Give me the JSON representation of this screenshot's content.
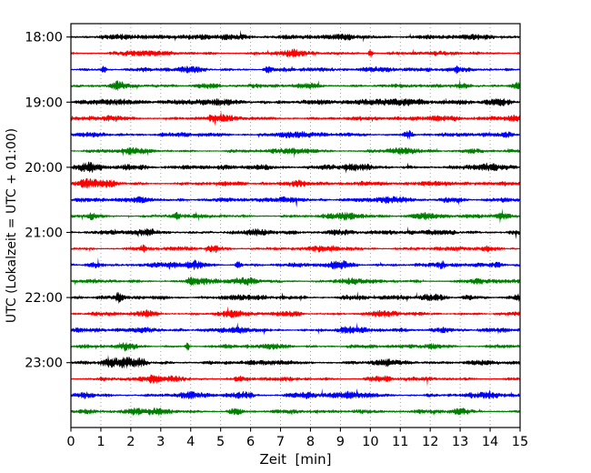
{
  "chart_data": {
    "type": "line",
    "subtype": "seismogram-helicorder-dayplot",
    "title": "",
    "xlabel": "Zeit  [min]",
    "ylabel": "UTC (Lokalzeit = UTC + 01:00)",
    "xlim": [
      0,
      15
    ],
    "minutes_per_line": 15,
    "x_ticks": [
      0,
      1,
      2,
      3,
      4,
      5,
      6,
      7,
      8,
      9,
      10,
      11,
      12,
      13,
      14,
      15
    ],
    "y_tick_labels": [
      "18:00",
      "19:00",
      "20:00",
      "21:00",
      "22:00",
      "23:00"
    ],
    "grid": {
      "vertical": true,
      "horizontal": false,
      "style": "dotted",
      "color": "#999999"
    },
    "trace_color_cycle": [
      "#000000",
      "#ff0000",
      "#0000ff",
      "#008000"
    ],
    "traces": [
      {
        "start": "18:00",
        "color": "#000000",
        "seed": 11,
        "base_amp": 2.5,
        "events": [
          [
            1.7,
            2.5,
            0.4
          ],
          [
            5.2,
            2.0,
            0.5
          ],
          [
            9.3,
            1.8,
            0.4
          ],
          [
            13.8,
            1.6,
            0.3
          ]
        ]
      },
      {
        "start": "18:15",
        "color": "#ff0000",
        "seed": 22,
        "base_amp": 2.2,
        "events": [
          [
            2.3,
            1.8,
            0.4
          ],
          [
            7.3,
            2.2,
            0.3
          ],
          [
            10.0,
            4.6,
            0.05
          ]
        ]
      },
      {
        "start": "18:30",
        "color": "#0000ff",
        "seed": 33,
        "base_amp": 2.3,
        "events": [
          [
            1.1,
            4.4,
            0.05
          ],
          [
            4.1,
            2.2,
            0.25
          ],
          [
            6.6,
            3.4,
            0.07
          ],
          [
            10.3,
            2.4,
            0.4
          ],
          [
            12.9,
            4.6,
            0.05
          ]
        ]
      },
      {
        "start": "18:45",
        "color": "#008000",
        "seed": 44,
        "base_amp": 2.1,
        "events": [
          [
            1.6,
            3.2,
            0.15
          ],
          [
            4.5,
            2.2,
            0.3
          ],
          [
            8.0,
            2.0,
            0.3
          ],
          [
            13.1,
            2.6,
            0.2
          ],
          [
            14.9,
            2.8,
            0.15
          ]
        ]
      },
      {
        "start": "19:00",
        "color": "#000000",
        "seed": 55,
        "base_amp": 2.5,
        "events": [
          [
            1.4,
            2.6,
            0.5
          ],
          [
            5.0,
            2.0,
            0.6
          ],
          [
            10.7,
            3.2,
            0.7
          ],
          [
            14.3,
            2.4,
            0.3
          ]
        ]
      },
      {
        "start": "19:15",
        "color": "#ff0000",
        "seed": 66,
        "base_amp": 2.2,
        "events": [
          [
            1.4,
            2.2,
            0.3
          ],
          [
            5.0,
            2.0,
            0.4
          ],
          [
            12.2,
            2.4,
            0.5
          ],
          [
            14.8,
            2.0,
            0.2
          ]
        ]
      },
      {
        "start": "19:30",
        "color": "#0000ff",
        "seed": 77,
        "base_amp": 2.3,
        "events": [
          [
            0.8,
            2.0,
            0.3
          ],
          [
            7.3,
            2.2,
            0.4
          ],
          [
            11.3,
            3.8,
            0.1
          ],
          [
            14.6,
            2.0,
            0.2
          ]
        ]
      },
      {
        "start": "19:45",
        "color": "#008000",
        "seed": 88,
        "base_amp": 2.1,
        "events": [
          [
            2.0,
            2.0,
            0.3
          ],
          [
            7.6,
            2.2,
            0.4
          ],
          [
            11.0,
            2.4,
            0.25
          ],
          [
            13.5,
            1.8,
            0.3
          ]
        ]
      },
      {
        "start": "20:00",
        "color": "#000000",
        "seed": 99,
        "base_amp": 2.5,
        "events": [
          [
            0.6,
            3.0,
            0.3
          ],
          [
            2.0,
            2.2,
            0.4
          ],
          [
            6.3,
            2.6,
            0.25
          ],
          [
            9.4,
            2.0,
            0.4
          ],
          [
            13.9,
            2.2,
            0.3
          ]
        ]
      },
      {
        "start": "20:15",
        "color": "#ff0000",
        "seed": 110,
        "base_amp": 2.2,
        "events": [
          [
            0.6,
            3.4,
            0.25
          ],
          [
            1.3,
            3.0,
            0.2
          ],
          [
            7.6,
            3.2,
            0.3
          ],
          [
            12.2,
            2.2,
            0.4
          ]
        ]
      },
      {
        "start": "20:30",
        "color": "#0000ff",
        "seed": 121,
        "base_amp": 2.3,
        "events": [
          [
            2.4,
            2.2,
            0.3
          ],
          [
            7.3,
            2.6,
            0.3
          ],
          [
            10.7,
            2.2,
            0.4
          ],
          [
            12.7,
            2.0,
            0.3
          ]
        ]
      },
      {
        "start": "20:45",
        "color": "#008000",
        "seed": 132,
        "base_amp": 2.1,
        "events": [
          [
            0.7,
            3.4,
            0.1
          ],
          [
            3.5,
            3.0,
            0.12
          ],
          [
            9.2,
            2.4,
            0.4
          ],
          [
            11.8,
            2.6,
            0.4
          ],
          [
            14.4,
            3.0,
            0.15
          ]
        ]
      },
      {
        "start": "21:00",
        "color": "#000000",
        "seed": 143,
        "base_amp": 2.4,
        "events": [
          [
            2.5,
            2.0,
            0.3
          ],
          [
            6.3,
            2.4,
            0.2
          ],
          [
            9.0,
            2.0,
            0.4
          ],
          [
            12.5,
            2.0,
            0.3
          ]
        ]
      },
      {
        "start": "21:15",
        "color": "#ff0000",
        "seed": 154,
        "base_amp": 2.2,
        "events": [
          [
            2.4,
            3.4,
            0.07
          ],
          [
            4.8,
            2.6,
            0.2
          ],
          [
            8.6,
            2.0,
            0.3
          ],
          [
            13.9,
            2.4,
            0.15
          ]
        ]
      },
      {
        "start": "21:30",
        "color": "#0000ff",
        "seed": 165,
        "base_amp": 2.3,
        "events": [
          [
            0.8,
            2.4,
            0.2
          ],
          [
            3.3,
            2.6,
            0.15
          ],
          [
            4.1,
            3.0,
            0.25
          ],
          [
            5.6,
            3.2,
            0.07
          ],
          [
            9.0,
            3.2,
            0.3
          ],
          [
            12.4,
            3.4,
            0.07
          ],
          [
            14.2,
            2.4,
            0.2
          ]
        ]
      },
      {
        "start": "21:45",
        "color": "#008000",
        "seed": 176,
        "base_amp": 2.1,
        "events": [
          [
            4.0,
            4.0,
            0.06
          ],
          [
            4.4,
            2.6,
            0.3
          ],
          [
            5.9,
            2.8,
            0.25
          ],
          [
            9.3,
            2.2,
            0.3
          ],
          [
            13.6,
            2.0,
            0.3
          ]
        ]
      },
      {
        "start": "22:00",
        "color": "#000000",
        "seed": 187,
        "base_amp": 2.4,
        "events": [
          [
            1.6,
            4.6,
            0.05
          ],
          [
            5.4,
            2.0,
            0.3
          ],
          [
            9.5,
            1.8,
            0.3
          ],
          [
            12.1,
            2.2,
            0.25
          ],
          [
            13.3,
            2.0,
            0.2
          ],
          [
            14.9,
            2.6,
            0.15
          ]
        ]
      },
      {
        "start": "22:15",
        "color": "#ff0000",
        "seed": 198,
        "base_amp": 2.2,
        "events": [
          [
            2.6,
            2.4,
            0.25
          ],
          [
            5.3,
            2.2,
            0.3
          ],
          [
            7.4,
            2.0,
            0.25
          ],
          [
            10.5,
            1.8,
            0.3
          ]
        ]
      },
      {
        "start": "22:30",
        "color": "#0000ff",
        "seed": 209,
        "base_amp": 2.3,
        "events": [
          [
            2.5,
            2.6,
            0.3
          ],
          [
            5.6,
            2.2,
            0.25
          ],
          [
            9.3,
            2.4,
            0.3
          ],
          [
            12.3,
            2.0,
            0.3
          ]
        ]
      },
      {
        "start": "22:45",
        "color": "#008000",
        "seed": 220,
        "base_amp": 2.1,
        "events": [
          [
            1.9,
            3.0,
            0.2
          ],
          [
            3.9,
            4.2,
            0.05
          ],
          [
            6.9,
            2.0,
            0.3
          ],
          [
            12.1,
            2.6,
            0.3
          ]
        ]
      },
      {
        "start": "23:00",
        "color": "#000000",
        "seed": 231,
        "base_amp": 2.4,
        "events": [
          [
            1.4,
            3.2,
            0.25
          ],
          [
            1.9,
            3.0,
            0.2
          ],
          [
            2.3,
            3.8,
            0.15
          ],
          [
            7.0,
            1.8,
            0.3
          ],
          [
            10.5,
            2.0,
            0.3
          ],
          [
            13.5,
            2.2,
            0.25
          ]
        ]
      },
      {
        "start": "23:15",
        "color": "#ff0000",
        "seed": 242,
        "base_amp": 2.2,
        "events": [
          [
            2.8,
            3.6,
            0.15
          ],
          [
            3.4,
            2.6,
            0.25
          ],
          [
            5.6,
            3.0,
            0.07
          ],
          [
            10.3,
            2.0,
            0.3
          ]
        ]
      },
      {
        "start": "23:30",
        "color": "#0000ff",
        "seed": 253,
        "base_amp": 2.3,
        "events": [
          [
            0.5,
            2.6,
            0.2
          ],
          [
            3.9,
            2.4,
            0.25
          ],
          [
            5.7,
            2.4,
            0.3
          ],
          [
            7.8,
            2.2,
            0.3
          ],
          [
            9.5,
            2.6,
            0.4
          ],
          [
            14.0,
            2.2,
            0.3
          ]
        ]
      },
      {
        "start": "23:45",
        "color": "#008000",
        "seed": 264,
        "base_amp": 2.1,
        "events": [
          [
            0.5,
            2.2,
            0.25
          ],
          [
            2.1,
            2.4,
            0.3
          ],
          [
            3.0,
            2.2,
            0.25
          ],
          [
            5.5,
            2.6,
            0.2
          ],
          [
            9.7,
            1.8,
            0.3
          ],
          [
            13.0,
            2.0,
            0.25
          ]
        ]
      }
    ]
  }
}
